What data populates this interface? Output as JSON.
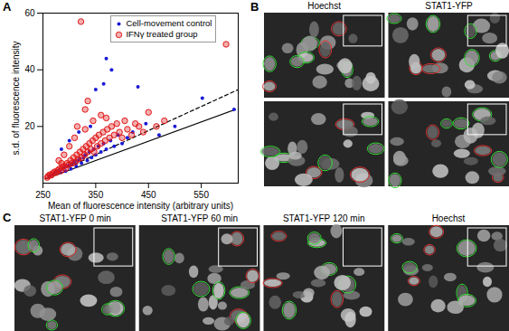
{
  "panel_labels": [
    "A",
    "B",
    "C"
  ],
  "chart_data": {
    "type": "scatter",
    "x_label": "Mean of fluorescence intensity (arbitrary units)",
    "y_label": "s.d. of fluorescence intensity",
    "xlim": [
      250,
      620
    ],
    "xticks": [
      250,
      350,
      450,
      550
    ],
    "ylim": [
      0,
      60
    ],
    "yticks": [
      20,
      40,
      60
    ],
    "grid": false,
    "legend": "top",
    "series": [
      {
        "name": "Cell-movement control",
        "color": "#1a1ad6",
        "marker": "dot",
        "x": [
          262,
          268,
          272,
          275,
          280,
          283,
          287,
          290,
          293,
          296,
          300,
          303,
          306,
          310,
          313,
          316,
          320,
          323,
          327,
          330,
          334,
          338,
          342,
          346,
          350,
          355,
          360,
          365,
          370,
          378,
          385,
          392,
          400,
          410,
          420,
          445,
          430,
          350,
          365,
          380,
          370,
          470,
          500,
          552,
          612,
          285,
          300,
          318,
          340
        ],
        "values": [
          2.5,
          3,
          3.5,
          4,
          4.5,
          3.8,
          5,
          5.5,
          4.2,
          6,
          6.5,
          5,
          7,
          7.5,
          6,
          8,
          8.5,
          7,
          9,
          10,
          8,
          11,
          9,
          12,
          10,
          13,
          11,
          14,
          12,
          15,
          13,
          17,
          14,
          16,
          18,
          21,
          34,
          33,
          35,
          40,
          44,
          17,
          20,
          30,
          26,
          12,
          15,
          18,
          20
        ]
      },
      {
        "name": "IFNγ treated group",
        "color": "#e01818",
        "marker": "circle",
        "x": [
          258,
          260,
          263,
          266,
          269,
          272,
          275,
          278,
          281,
          284,
          287,
          290,
          293,
          296,
          299,
          302,
          305,
          308,
          311,
          314,
          317,
          320,
          323,
          326,
          329,
          332,
          335,
          338,
          341,
          344,
          347,
          350,
          353,
          356,
          360,
          364,
          368,
          372,
          376,
          380,
          385,
          390,
          395,
          400,
          405,
          410,
          418,
          425,
          432,
          440,
          450,
          465,
          480,
          322,
          597,
          335,
          330,
          330,
          360,
          310,
          300,
          290,
          280,
          345,
          370,
          315,
          285
        ],
        "values": [
          2,
          2.5,
          3,
          2.8,
          3.5,
          4,
          3.7,
          4.5,
          5,
          4.3,
          5.8,
          6,
          5.2,
          7,
          6.5,
          8,
          7,
          9,
          7.5,
          10,
          8.5,
          11,
          9,
          12,
          10,
          13,
          11,
          14,
          12,
          15,
          11,
          16,
          13,
          17,
          14,
          18,
          15,
          19,
          16,
          20,
          17,
          21,
          18,
          16,
          22,
          19,
          17,
          21,
          20,
          18,
          25,
          20,
          22,
          57,
          49,
          29,
          26,
          19,
          24,
          16,
          13,
          10,
          8,
          22,
          23,
          20,
          7
        ]
      },
      {
        "type": "line",
        "line_style": "solid",
        "color": "#000000",
        "x": [
          255,
          615
        ],
        "values": [
          1.5,
          26
        ]
      },
      {
        "type": "line",
        "line_style": "dashed",
        "color": "#000000",
        "x": [
          300,
          620
        ],
        "values": [
          5.8,
          33
        ]
      }
    ]
  },
  "images": {
    "B": {
      "columns": [
        "Hoechst",
        "STAT1-YFP"
      ]
    },
    "C": {
      "columns": [
        "STAT1-YFP 0 min",
        "STAT1-YFP 60 min",
        "STAT1-YFP 120 min",
        "Hoechst"
      ]
    }
  }
}
